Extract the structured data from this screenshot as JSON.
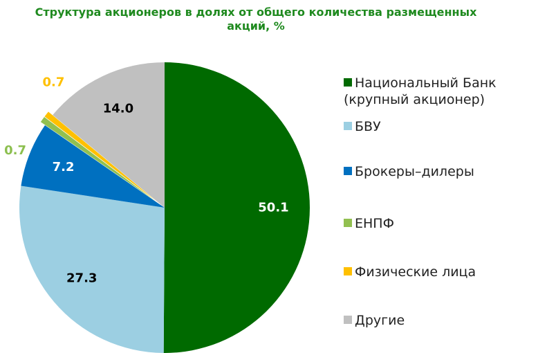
{
  "chart_data": {
    "type": "pie",
    "title": "Структура акционеров в долях от общего количества размещенных акций, %",
    "categories": [
      "Национальный Банк (крупный акционер)",
      "БВУ",
      "Брокеры–дилеры",
      "ЕНПФ",
      "Физические лица",
      "Другие"
    ],
    "values": [
      50.1,
      27.3,
      7.2,
      0.7,
      0.7,
      14.0
    ],
    "value_labels": [
      "50.1",
      "27.3",
      "7.2",
      "0.7",
      "0.7",
      "14.0"
    ],
    "colors": [
      "#006a00",
      "#9ccfe2",
      "#0070c0",
      "#92c050",
      "#ffc000",
      "#c0c0c0"
    ],
    "label_colors": [
      "#ffffff",
      "#000000",
      "#ffffff",
      "#8cbf4f",
      "#ffc000",
      "#000000"
    ]
  }
}
